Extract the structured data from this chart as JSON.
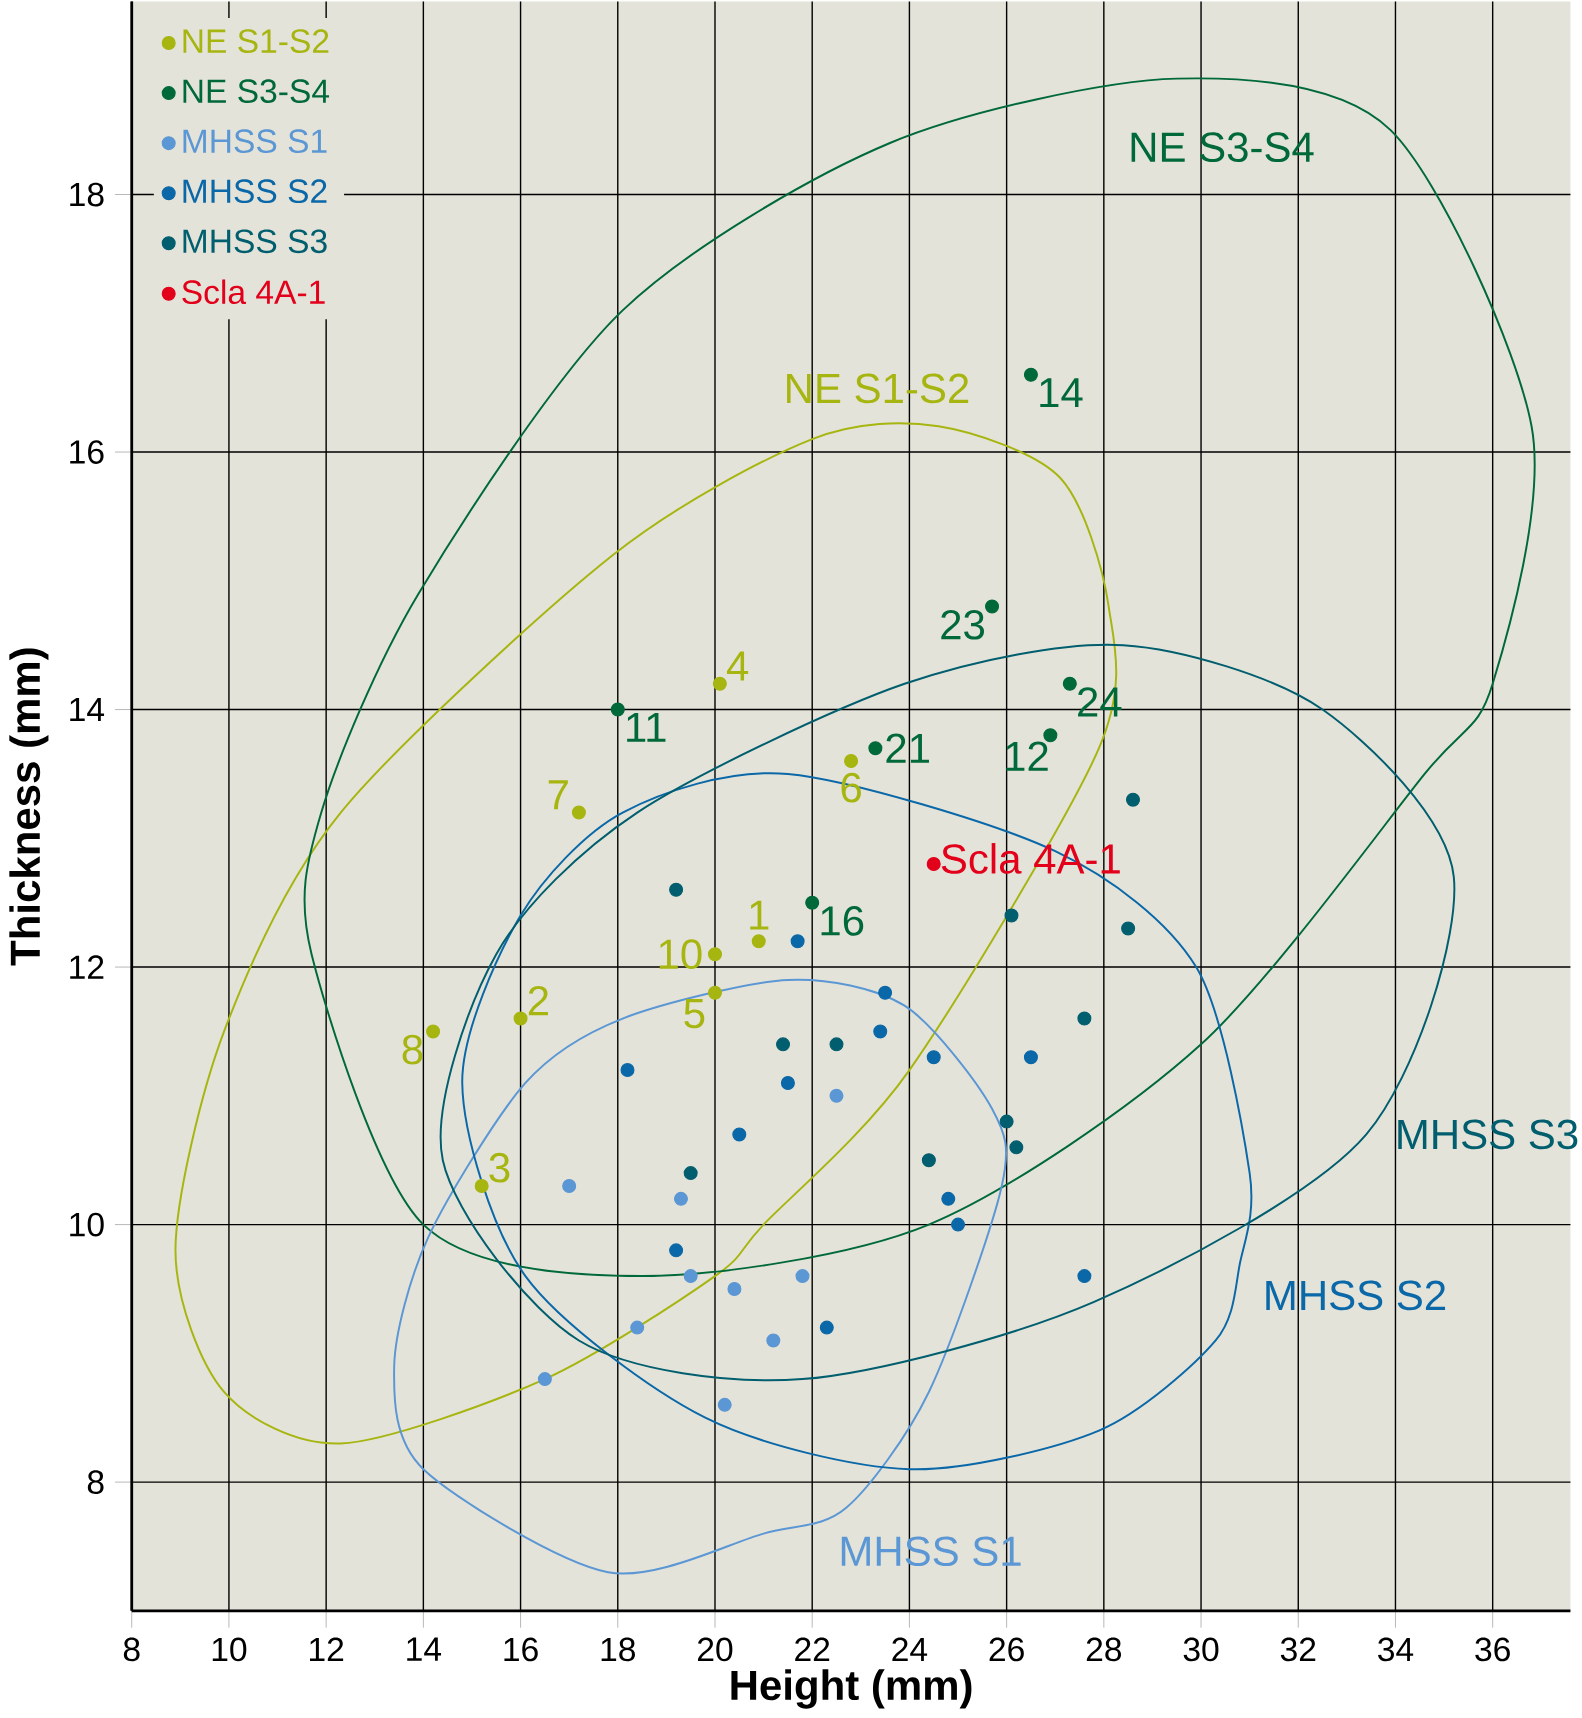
{
  "chart_data": {
    "type": "scatter",
    "xlabel": "Height (mm)",
    "ylabel": "Thickness (mm)",
    "xlim": [
      8,
      37.6
    ],
    "ylim": [
      7,
      19.5
    ],
    "xticks": [
      8,
      10,
      12,
      14,
      16,
      18,
      20,
      22,
      24,
      26,
      28,
      30,
      32,
      34,
      36
    ],
    "yticks": [
      8,
      10,
      12,
      14,
      16,
      18
    ],
    "grid": true,
    "legend": "top left",
    "marker": "circle",
    "series": [
      {
        "name": "NE S1-S2",
        "color": "#a6b510",
        "x": [
          20.9,
          16.0,
          15.2,
          20.1,
          20.0,
          22.8,
          17.2,
          14.2,
          20.0
        ],
        "values": [
          12.2,
          11.6,
          10.3,
          14.2,
          11.8,
          13.6,
          13.2,
          11.5,
          12.1
        ]
      },
      {
        "name": "NE S3-S4",
        "color": "#00693a",
        "x": [
          18.0,
          26.5,
          25.7,
          23.3,
          26.9,
          27.3,
          22.0
        ],
        "values": [
          14.0,
          16.6,
          14.8,
          13.7,
          13.8,
          14.2,
          12.5
        ]
      },
      {
        "name": "MHSS S1",
        "color": "#5b97d4",
        "x": [
          17.0,
          19.3,
          19.5,
          20.4,
          21.8,
          18.4,
          16.5,
          21.2,
          20.2,
          22.5
        ],
        "values": [
          10.3,
          10.2,
          9.6,
          9.5,
          9.6,
          9.2,
          8.8,
          9.1,
          8.6,
          11.0
        ]
      },
      {
        "name": "MHSS S2",
        "color": "#0a68a8",
        "x": [
          18.2,
          20.5,
          21.5,
          19.2,
          22.3,
          21.7,
          23.4,
          23.5,
          24.5,
          26.5,
          24.8,
          25.0,
          27.6
        ],
        "values": [
          11.2,
          10.7,
          11.1,
          9.8,
          9.2,
          12.2,
          11.5,
          11.8,
          11.3,
          11.3,
          10.2,
          10.0,
          9.6
        ]
      },
      {
        "name": "MHSS S3",
        "color": "#005e6e",
        "x": [
          19.2,
          21.4,
          22.5,
          19.5,
          26.1,
          28.5,
          28.6,
          27.6,
          26.0,
          26.2,
          24.4
        ],
        "values": [
          12.6,
          11.4,
          11.4,
          10.4,
          12.4,
          12.3,
          13.3,
          11.6,
          10.8,
          10.6,
          10.5
        ]
      },
      {
        "name": "Scla 4A-1",
        "color": "#e3001b",
        "x": [
          24.5
        ],
        "values": [
          12.8
        ]
      }
    ],
    "annotations": [
      {
        "text": "1",
        "x": 20.9,
        "y": 12.2
      },
      {
        "text": "2",
        "x": 16.0,
        "y": 11.6
      },
      {
        "text": "3",
        "x": 15.2,
        "y": 10.3
      },
      {
        "text": "4",
        "x": 20.1,
        "y": 14.2
      },
      {
        "text": "5",
        "x": 20.0,
        "y": 11.8
      },
      {
        "text": "6",
        "x": 22.8,
        "y": 13.6
      },
      {
        "text": "7",
        "x": 17.2,
        "y": 13.2
      },
      {
        "text": "8",
        "x": 14.2,
        "y": 11.5
      },
      {
        "text": "10",
        "x": 20.0,
        "y": 12.1
      },
      {
        "text": "11",
        "x": 18.0,
        "y": 14.0
      },
      {
        "text": "14",
        "x": 26.5,
        "y": 16.6
      },
      {
        "text": "23",
        "x": 25.7,
        "y": 14.8
      },
      {
        "text": "21",
        "x": 23.3,
        "y": 13.7
      },
      {
        "text": "12",
        "x": 26.9,
        "y": 13.8
      },
      {
        "text": "24",
        "x": 27.3,
        "y": 14.2
      },
      {
        "text": "16",
        "x": 22.0,
        "y": 12.5
      },
      {
        "text": "Scla 4A-1",
        "x": 24.5,
        "y": 12.8
      },
      "NE S1-S2",
      "NE S3-S4",
      "MHSS S1",
      "MHSS S2",
      "MHSS S3"
    ]
  }
}
